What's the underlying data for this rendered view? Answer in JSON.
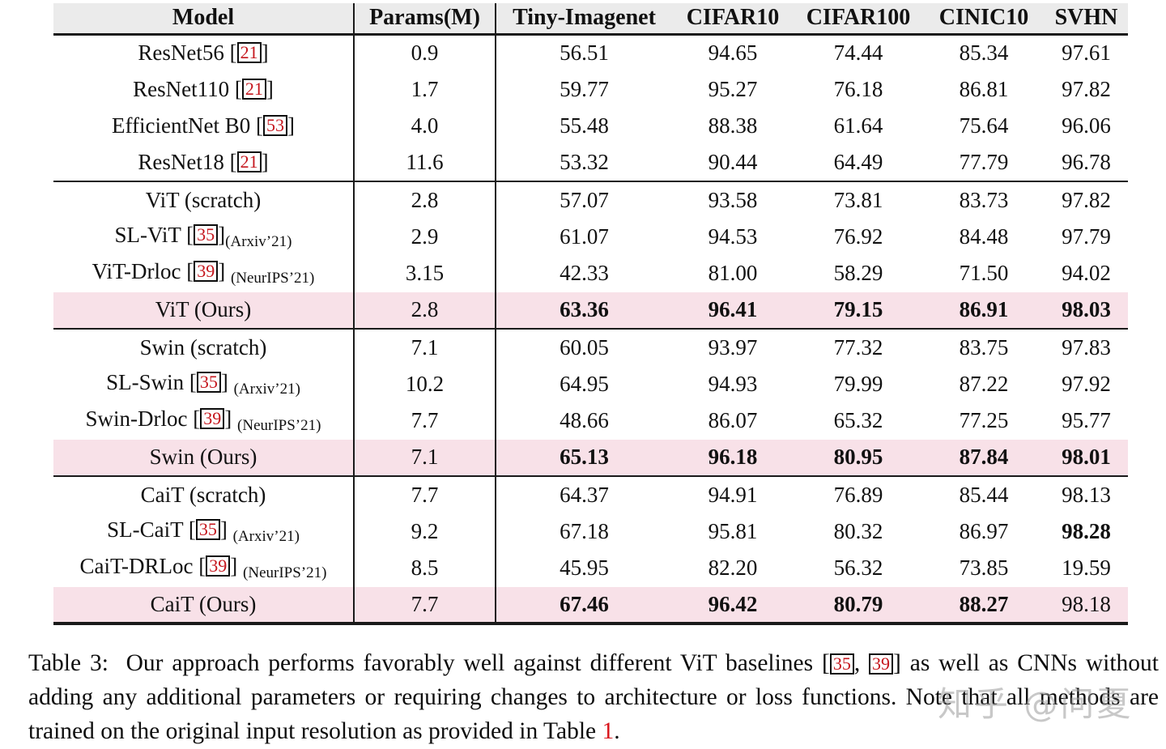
{
  "colors": {
    "highlight_pink": "#f8e1e8",
    "header_gray": "#ebebeb",
    "rule_black": "#1a1a1a",
    "citation_red": "#c5161d",
    "link_red": "#d9141b"
  },
  "table": {
    "columns": [
      "Model",
      "Params(M)",
      "Tiny-Imagenet",
      "CIFAR10",
      "CIFAR100",
      "CINIC10",
      "SVHN"
    ],
    "sections": [
      {
        "rows": [
          {
            "name": "ResNet56",
            "cite": "21",
            "sub": null,
            "attached": false,
            "params": "0.9",
            "values": [
              "56.51",
              "94.65",
              "74.44",
              "85.34",
              "97.61"
            ],
            "bold": [
              false,
              false,
              false,
              false,
              false
            ],
            "highlight": false
          },
          {
            "name": "ResNet110",
            "cite": "21",
            "sub": null,
            "attached": false,
            "params": "1.7",
            "values": [
              "59.77",
              "95.27",
              "76.18",
              "86.81",
              "97.82"
            ],
            "bold": [
              false,
              false,
              false,
              false,
              false
            ],
            "highlight": false
          },
          {
            "name": "EfficientNet B0",
            "cite": "53",
            "sub": null,
            "attached": false,
            "params": "4.0",
            "values": [
              "55.48",
              "88.38",
              "61.64",
              "75.64",
              "96.06"
            ],
            "bold": [
              false,
              false,
              false,
              false,
              false
            ],
            "highlight": false
          },
          {
            "name": "ResNet18",
            "cite": "21",
            "sub": null,
            "attached": false,
            "params": "11.6",
            "values": [
              "53.32",
              "90.44",
              "64.49",
              "77.79",
              "96.78"
            ],
            "bold": [
              false,
              false,
              false,
              false,
              false
            ],
            "highlight": false
          }
        ]
      },
      {
        "rows": [
          {
            "name": "ViT (scratch)",
            "cite": null,
            "sub": null,
            "attached": false,
            "params": "2.8",
            "values": [
              "57.07",
              "93.58",
              "73.81",
              "83.73",
              "97.82"
            ],
            "bold": [
              false,
              false,
              false,
              false,
              false
            ],
            "highlight": false
          },
          {
            "name": "SL-ViT",
            "cite": "35",
            "sub": "(Arxiv’21)",
            "attached": true,
            "params": "2.9",
            "values": [
              "61.07",
              "94.53",
              "76.92",
              "84.48",
              "97.79"
            ],
            "bold": [
              false,
              false,
              false,
              false,
              false
            ],
            "highlight": false
          },
          {
            "name": "ViT-Drloc",
            "cite": "39",
            "sub": "(NeurIPS’21)",
            "attached": false,
            "params": "3.15",
            "values": [
              "42.33",
              "81.00",
              "58.29",
              "71.50",
              "94.02"
            ],
            "bold": [
              false,
              false,
              false,
              false,
              false
            ],
            "highlight": false
          },
          {
            "name": "ViT (Ours)",
            "cite": null,
            "sub": null,
            "attached": false,
            "params": "2.8",
            "values": [
              "63.36",
              "96.41",
              "79.15",
              "86.91",
              "98.03"
            ],
            "bold": [
              true,
              true,
              true,
              true,
              true
            ],
            "highlight": true
          }
        ]
      },
      {
        "rows": [
          {
            "name": "Swin (scratch)",
            "cite": null,
            "sub": null,
            "attached": false,
            "params": "7.1",
            "values": [
              "60.05",
              "93.97",
              "77.32",
              "83.75",
              "97.83"
            ],
            "bold": [
              false,
              false,
              false,
              false,
              false
            ],
            "highlight": false
          },
          {
            "name": "SL-Swin",
            "cite": "35",
            "sub": "(Arxiv’21)",
            "attached": false,
            "params": "10.2",
            "values": [
              "64.95",
              "94.93",
              "79.99",
              "87.22",
              "97.92"
            ],
            "bold": [
              false,
              false,
              false,
              false,
              false
            ],
            "highlight": false
          },
          {
            "name": "Swin-Drloc",
            "cite": "39",
            "sub": "(NeurIPS’21)",
            "attached": false,
            "params": "7.7",
            "values": [
              "48.66",
              "86.07",
              "65.32",
              "77.25",
              "95.77"
            ],
            "bold": [
              false,
              false,
              false,
              false,
              false
            ],
            "highlight": false
          },
          {
            "name": "Swin (Ours)",
            "cite": null,
            "sub": null,
            "attached": false,
            "params": "7.1",
            "values": [
              "65.13",
              "96.18",
              "80.95",
              "87.84",
              "98.01"
            ],
            "bold": [
              true,
              true,
              true,
              true,
              true
            ],
            "highlight": true
          }
        ]
      },
      {
        "rows": [
          {
            "name": "CaiT (scratch)",
            "cite": null,
            "sub": null,
            "attached": false,
            "params": "7.7",
            "values": [
              "64.37",
              "94.91",
              "76.89",
              "85.44",
              "98.13"
            ],
            "bold": [
              false,
              false,
              false,
              false,
              false
            ],
            "highlight": false
          },
          {
            "name": "SL-CaiT",
            "cite": "35",
            "sub": "(Arxiv’21)",
            "attached": false,
            "params": "9.2",
            "values": [
              "67.18",
              "95.81",
              "80.32",
              "86.97",
              "98.28"
            ],
            "bold": [
              false,
              false,
              false,
              false,
              true
            ],
            "highlight": false
          },
          {
            "name": "CaiT-DRLoc",
            "cite": "39",
            "sub": "(NeurIPS’21)",
            "attached": false,
            "params": "8.5",
            "values": [
              "45.95",
              "82.20",
              "56.32",
              "73.85",
              "19.59"
            ],
            "bold": [
              false,
              false,
              false,
              false,
              false
            ],
            "highlight": false
          },
          {
            "name": "CaiT (Ours)",
            "cite": null,
            "sub": null,
            "attached": false,
            "params": "7.7",
            "values": [
              "67.46",
              "96.42",
              "80.79",
              "88.27",
              "98.18"
            ],
            "bold": [
              true,
              true,
              true,
              true,
              false
            ],
            "highlight": true
          }
        ]
      }
    ]
  },
  "caption": {
    "segments": [
      {
        "text": "Table 3:  Our approach performs favorably well against different ViT baselines [",
        "style": "normal"
      },
      {
        "text": "35",
        "style": "citebox"
      },
      {
        "text": ", ",
        "style": "normal"
      },
      {
        "text": "39",
        "style": "citebox"
      },
      {
        "text": "] as well as CNNs without adding any additional parameters or requiring changes to architecture or loss functions. Note that all methods are trained on the original input resolution as provided in Table ",
        "style": "normal"
      },
      {
        "text": "1",
        "style": "redlink"
      },
      {
        "text": ".",
        "style": "normal"
      }
    ]
  },
  "watermark": "知乎 @问夏"
}
